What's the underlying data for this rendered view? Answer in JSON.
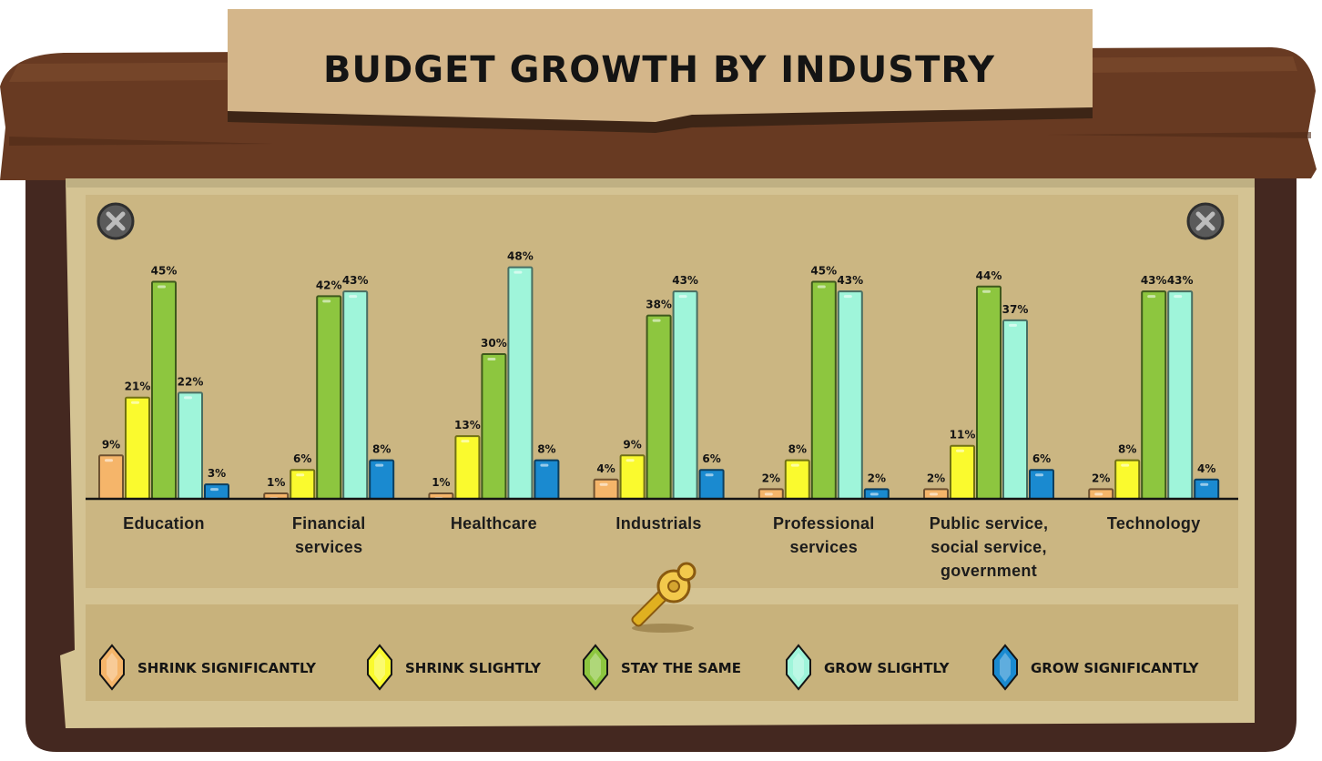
{
  "chart_data": {
    "type": "bar",
    "title": "BUDGET GROWTH BY INDUSTRY",
    "categories": [
      "Education",
      "Financial services",
      "Healthcare",
      "Industrials",
      "Professional services",
      "Public service, social service, government",
      "Technology"
    ],
    "series": [
      {
        "name": "SHRINK SIGNIFICANTLY",
        "color": "#f5b56a",
        "values": [
          9,
          1,
          1,
          4,
          2,
          2,
          2
        ]
      },
      {
        "name": "SHRINK SLIGHTLY",
        "color": "#fafa2e",
        "values": [
          21,
          6,
          13,
          9,
          8,
          11,
          8
        ]
      },
      {
        "name": "STAY THE SAME",
        "color": "#8dc63f",
        "values": [
          45,
          42,
          30,
          38,
          45,
          44,
          43
        ]
      },
      {
        "name": "GROW SLIGHTLY",
        "color": "#9ff5da",
        "values": [
          22,
          43,
          48,
          43,
          43,
          37,
          43
        ]
      },
      {
        "name": "GROW SIGNIFICANTLY",
        "color": "#1a8ad0",
        "values": [
          3,
          8,
          8,
          6,
          2,
          6,
          4
        ]
      }
    ],
    "value_suffix": "%",
    "ylim": [
      0,
      48
    ],
    "grid": false,
    "legend_position": "bottom",
    "xlabel": "",
    "ylabel": ""
  }
}
